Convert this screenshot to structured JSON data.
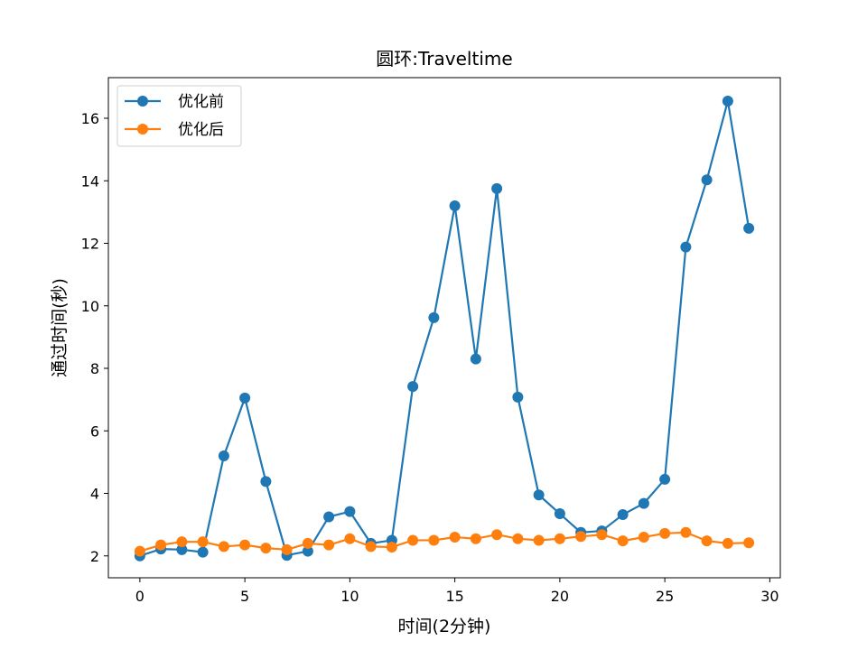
{
  "chart_data": {
    "type": "line",
    "title": "圆环:Traveltime",
    "xlabel": "时间(2分钟)",
    "ylabel": "通过时间(秒)",
    "xlim": [
      -1.5,
      30.5
    ],
    "ylim": [
      1.3,
      17.3
    ],
    "xticks": [
      0,
      5,
      10,
      15,
      20,
      25,
      30
    ],
    "yticks": [
      2,
      4,
      6,
      8,
      10,
      12,
      14,
      16
    ],
    "grid": false,
    "legend_position": "top-left",
    "x": [
      0,
      1,
      2,
      3,
      4,
      5,
      6,
      7,
      8,
      9,
      10,
      11,
      12,
      13,
      14,
      15,
      16,
      17,
      18,
      19,
      20,
      21,
      22,
      23,
      24,
      25,
      26,
      27,
      28,
      29
    ],
    "series": [
      {
        "name": "优化前",
        "color": "#1f77b4",
        "marker": "circle",
        "values": [
          2.0,
          2.22,
          2.2,
          2.12,
          5.2,
          7.05,
          4.38,
          2.02,
          2.15,
          3.25,
          3.42,
          2.4,
          2.5,
          7.42,
          9.62,
          13.2,
          8.3,
          13.75,
          7.08,
          3.95,
          3.35,
          2.75,
          2.8,
          3.32,
          3.68,
          4.45,
          11.88,
          14.03,
          16.55,
          12.48
        ]
      },
      {
        "name": "优化后",
        "color": "#ff7f0e",
        "marker": "circle",
        "values": [
          2.15,
          2.35,
          2.45,
          2.45,
          2.3,
          2.35,
          2.25,
          2.2,
          2.4,
          2.35,
          2.55,
          2.3,
          2.28,
          2.5,
          2.5,
          2.6,
          2.55,
          2.68,
          2.55,
          2.5,
          2.55,
          2.62,
          2.68,
          2.48,
          2.6,
          2.72,
          2.75,
          2.48,
          2.4,
          2.42
        ]
      }
    ]
  }
}
